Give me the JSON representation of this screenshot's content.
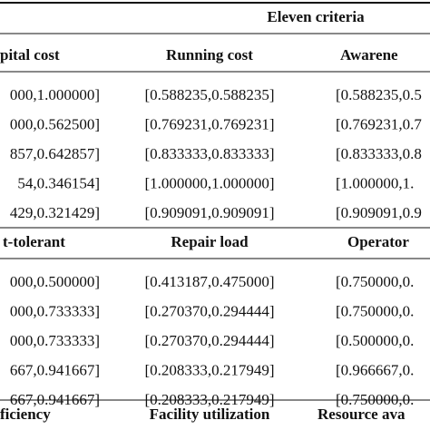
{
  "table": {
    "title": "Eleven criteria",
    "blocks": [
      {
        "headers": [
          "pital cost",
          "Running cost",
          "Awarene"
        ],
        "rows": [
          [
            "000,1.000000]",
            "[0.588235,0.588235]",
            "[0.588235,0.5"
          ],
          [
            "000,0.562500]",
            "[0.769231,0.769231]",
            "[0.769231,0.7"
          ],
          [
            "857,0.642857]",
            "[0.833333,0.833333]",
            "[0.833333,0.8"
          ],
          [
            "54,0.346154]",
            "[1.000000,1.000000]",
            "[1.000000,1."
          ],
          [
            "429,0.321429]",
            "[0.909091,0.909091]",
            "[0.909091,0.9"
          ]
        ]
      },
      {
        "headers": [
          "t-tolerant",
          "Repair load",
          "Operator"
        ],
        "rows": [
          [
            "000,0.500000]",
            "[0.413187,0.475000]",
            "[0.750000,0."
          ],
          [
            "000,0.733333]",
            "[0.270370,0.294444]",
            "[0.750000,0."
          ],
          [
            "000,0.733333]",
            "[0.270370,0.294444]",
            "[0.500000,0."
          ],
          [
            "667,0.941667]",
            "[0.208333,0.217949]",
            "[0.966667,0."
          ],
          [
            "667,0.941667]",
            "[0.208333,0.217949]",
            "[0.750000,0."
          ]
        ]
      },
      {
        "headers": [
          "ficiency",
          "Facility utilization",
          "Resource ava"
        ],
        "rows": []
      }
    ]
  }
}
